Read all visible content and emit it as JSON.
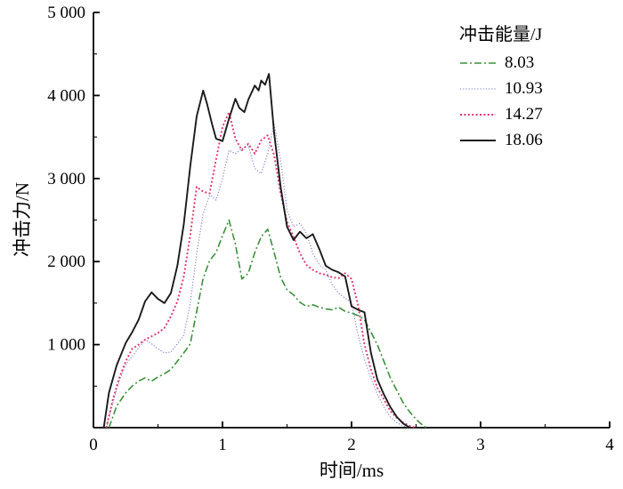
{
  "chart_data": {
    "type": "line",
    "title": "",
    "xlabel": "时间/ms",
    "ylabel": "冲击力/N",
    "xlim": [
      0,
      4
    ],
    "ylim": [
      0,
      5000
    ],
    "grid": false,
    "legend_title": "冲击能量/J",
    "legend_position": "top-right",
    "x_ticks": [
      0,
      1,
      2,
      3,
      4
    ],
    "x_tick_labels": [
      "0",
      "1",
      "2",
      "3",
      "4"
    ],
    "y_ticks": [
      1000,
      2000,
      3000,
      4000,
      5000
    ],
    "y_tick_labels": [
      "1 000",
      "2 000",
      "3 000",
      "4 000",
      "5 000"
    ],
    "series": [
      {
        "name": "8.03",
        "color": "#3c8f3c",
        "style": "dash-dot",
        "width": 1.6,
        "x": [
          0.12,
          0.18,
          0.25,
          0.3,
          0.35,
          0.4,
          0.45,
          0.5,
          0.55,
          0.6,
          0.65,
          0.7,
          0.75,
          0.8,
          0.85,
          0.9,
          0.95,
          1.0,
          1.05,
          1.1,
          1.15,
          1.2,
          1.25,
          1.3,
          1.35,
          1.4,
          1.45,
          1.5,
          1.55,
          1.6,
          1.65,
          1.7,
          1.75,
          1.8,
          1.85,
          1.9,
          1.95,
          2.0,
          2.05,
          2.1,
          2.15,
          2.2,
          2.25,
          2.3,
          2.35,
          2.4,
          2.45,
          2.5,
          2.55,
          2.58
        ],
        "y": [
          0,
          260,
          420,
          500,
          560,
          600,
          560,
          610,
          650,
          700,
          800,
          900,
          1010,
          1400,
          1800,
          2010,
          2110,
          2310,
          2500,
          2210,
          1790,
          1860,
          2110,
          2300,
          2390,
          2110,
          1810,
          1660,
          1600,
          1510,
          1460,
          1480,
          1450,
          1430,
          1420,
          1450,
          1400,
          1380,
          1350,
          1300,
          1150,
          1000,
          800,
          600,
          450,
          300,
          190,
          100,
          30,
          0
        ]
      },
      {
        "name": "10.93",
        "color": "#7878cc",
        "style": "dotted-fine",
        "width": 1.1,
        "x": [
          0.1,
          0.15,
          0.2,
          0.25,
          0.3,
          0.35,
          0.4,
          0.45,
          0.5,
          0.55,
          0.6,
          0.65,
          0.7,
          0.75,
          0.8,
          0.85,
          0.9,
          0.95,
          1.0,
          1.05,
          1.1,
          1.15,
          1.2,
          1.25,
          1.3,
          1.35,
          1.4,
          1.45,
          1.5,
          1.55,
          1.6,
          1.65,
          1.7,
          1.75,
          1.8,
          1.85,
          1.9,
          1.95,
          2.0,
          2.05,
          2.1,
          2.15,
          2.2,
          2.25,
          2.3,
          2.35,
          2.4,
          2.45
        ],
        "y": [
          0,
          300,
          560,
          760,
          860,
          960,
          1060,
          1010,
          950,
          900,
          910,
          1010,
          1110,
          1500,
          2100,
          2580,
          2800,
          2740,
          3000,
          3340,
          3300,
          3360,
          3400,
          3120,
          3060,
          3300,
          3660,
          3220,
          2620,
          2420,
          2460,
          2340,
          2100,
          1960,
          1900,
          1720,
          1620,
          1560,
          1500,
          1120,
          820,
          600,
          400,
          250,
          130,
          60,
          20,
          0
        ]
      },
      {
        "name": "14.27",
        "color": "#e0356b",
        "style": "dotted",
        "width": 1.9,
        "x": [
          0.1,
          0.15,
          0.2,
          0.25,
          0.3,
          0.35,
          0.4,
          0.45,
          0.5,
          0.55,
          0.6,
          0.65,
          0.7,
          0.75,
          0.8,
          0.85,
          0.9,
          0.95,
          1.0,
          1.05,
          1.1,
          1.15,
          1.2,
          1.25,
          1.3,
          1.35,
          1.4,
          1.45,
          1.5,
          1.55,
          1.6,
          1.65,
          1.7,
          1.75,
          1.8,
          1.85,
          1.9,
          1.95,
          2.0,
          2.05,
          2.1,
          2.15,
          2.2,
          2.25,
          2.3,
          2.35,
          2.4,
          2.45,
          2.5
        ],
        "y": [
          0,
          340,
          600,
          800,
          950,
          1000,
          1060,
          1100,
          1140,
          1200,
          1340,
          1520,
          1820,
          2320,
          2900,
          2840,
          2820,
          3230,
          3620,
          3800,
          3480,
          3340,
          3420,
          3300,
          3460,
          3520,
          3280,
          2820,
          2480,
          2300,
          2100,
          1960,
          1900,
          1860,
          1840,
          1810,
          1800,
          1860,
          1790,
          1480,
          1000,
          700,
          480,
          340,
          200,
          120,
          60,
          20,
          0
        ]
      },
      {
        "name": "18.06",
        "color": "#1a1a1a",
        "style": "solid",
        "width": 1.9,
        "x": [
          0.08,
          0.12,
          0.18,
          0.25,
          0.3,
          0.35,
          0.4,
          0.45,
          0.5,
          0.55,
          0.6,
          0.65,
          0.7,
          0.75,
          0.8,
          0.85,
          0.88,
          0.92,
          0.95,
          1.0,
          1.05,
          1.1,
          1.13,
          1.17,
          1.2,
          1.25,
          1.28,
          1.3,
          1.33,
          1.36,
          1.4,
          1.45,
          1.5,
          1.55,
          1.6,
          1.65,
          1.7,
          1.75,
          1.8,
          1.85,
          1.9,
          1.95,
          2.0,
          2.05,
          2.1,
          2.15,
          2.2,
          2.25,
          2.3,
          2.35,
          2.4,
          2.45
        ],
        "y": [
          0,
          420,
          750,
          1020,
          1150,
          1300,
          1520,
          1630,
          1550,
          1500,
          1620,
          1950,
          2450,
          3150,
          3750,
          4060,
          3900,
          3650,
          3480,
          3450,
          3720,
          3960,
          3850,
          3800,
          3950,
          4120,
          4060,
          4180,
          4130,
          4260,
          3550,
          2900,
          2420,
          2260,
          2360,
          2280,
          2330,
          2150,
          1950,
          1900,
          1870,
          1820,
          1460,
          1420,
          1390,
          900,
          580,
          400,
          250,
          130,
          50,
          0
        ]
      }
    ]
  }
}
